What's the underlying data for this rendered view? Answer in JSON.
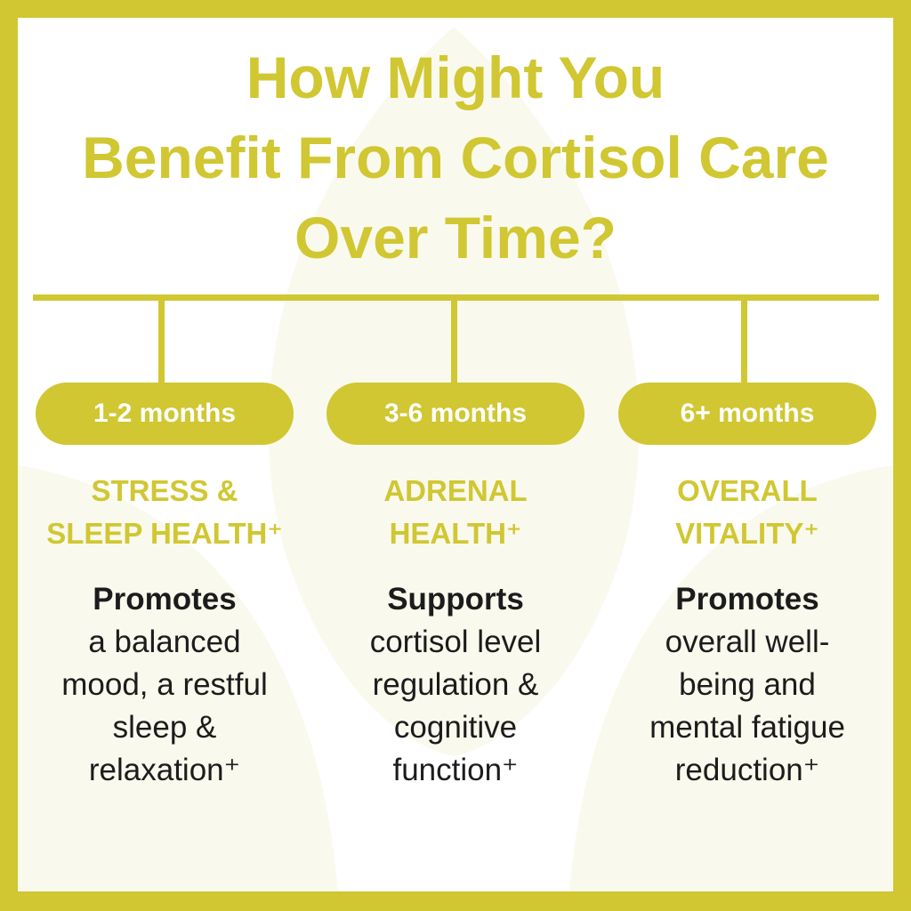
{
  "title": [
    "How Might You",
    "Benefit From Cortisol Care",
    "Over Time?"
  ],
  "colors": {
    "accent": "#d0c732",
    "text": "#1c1c1c",
    "background": "#ffffff",
    "leaf": "#f9f9ee"
  },
  "stages": [
    {
      "period": "1-2 months",
      "heading": [
        "STRESS &",
        "SLEEP HEALTH⁺"
      ],
      "lead": "Promotes",
      "body": "a balanced\nmood, a restful\nsleep &\nrelaxation⁺"
    },
    {
      "period": "3-6 months",
      "heading": [
        "ADRENAL",
        "HEALTH⁺"
      ],
      "lead": "Supports",
      "body": "cortisol level\nregulation &\ncognitive\nfunction⁺"
    },
    {
      "period": "6+ months",
      "heading": [
        "OVERALL",
        "VITALITY⁺"
      ],
      "lead": "Promotes",
      "body": "overall well-\nbeing and\nmental fatigue\nreduction⁺"
    }
  ]
}
